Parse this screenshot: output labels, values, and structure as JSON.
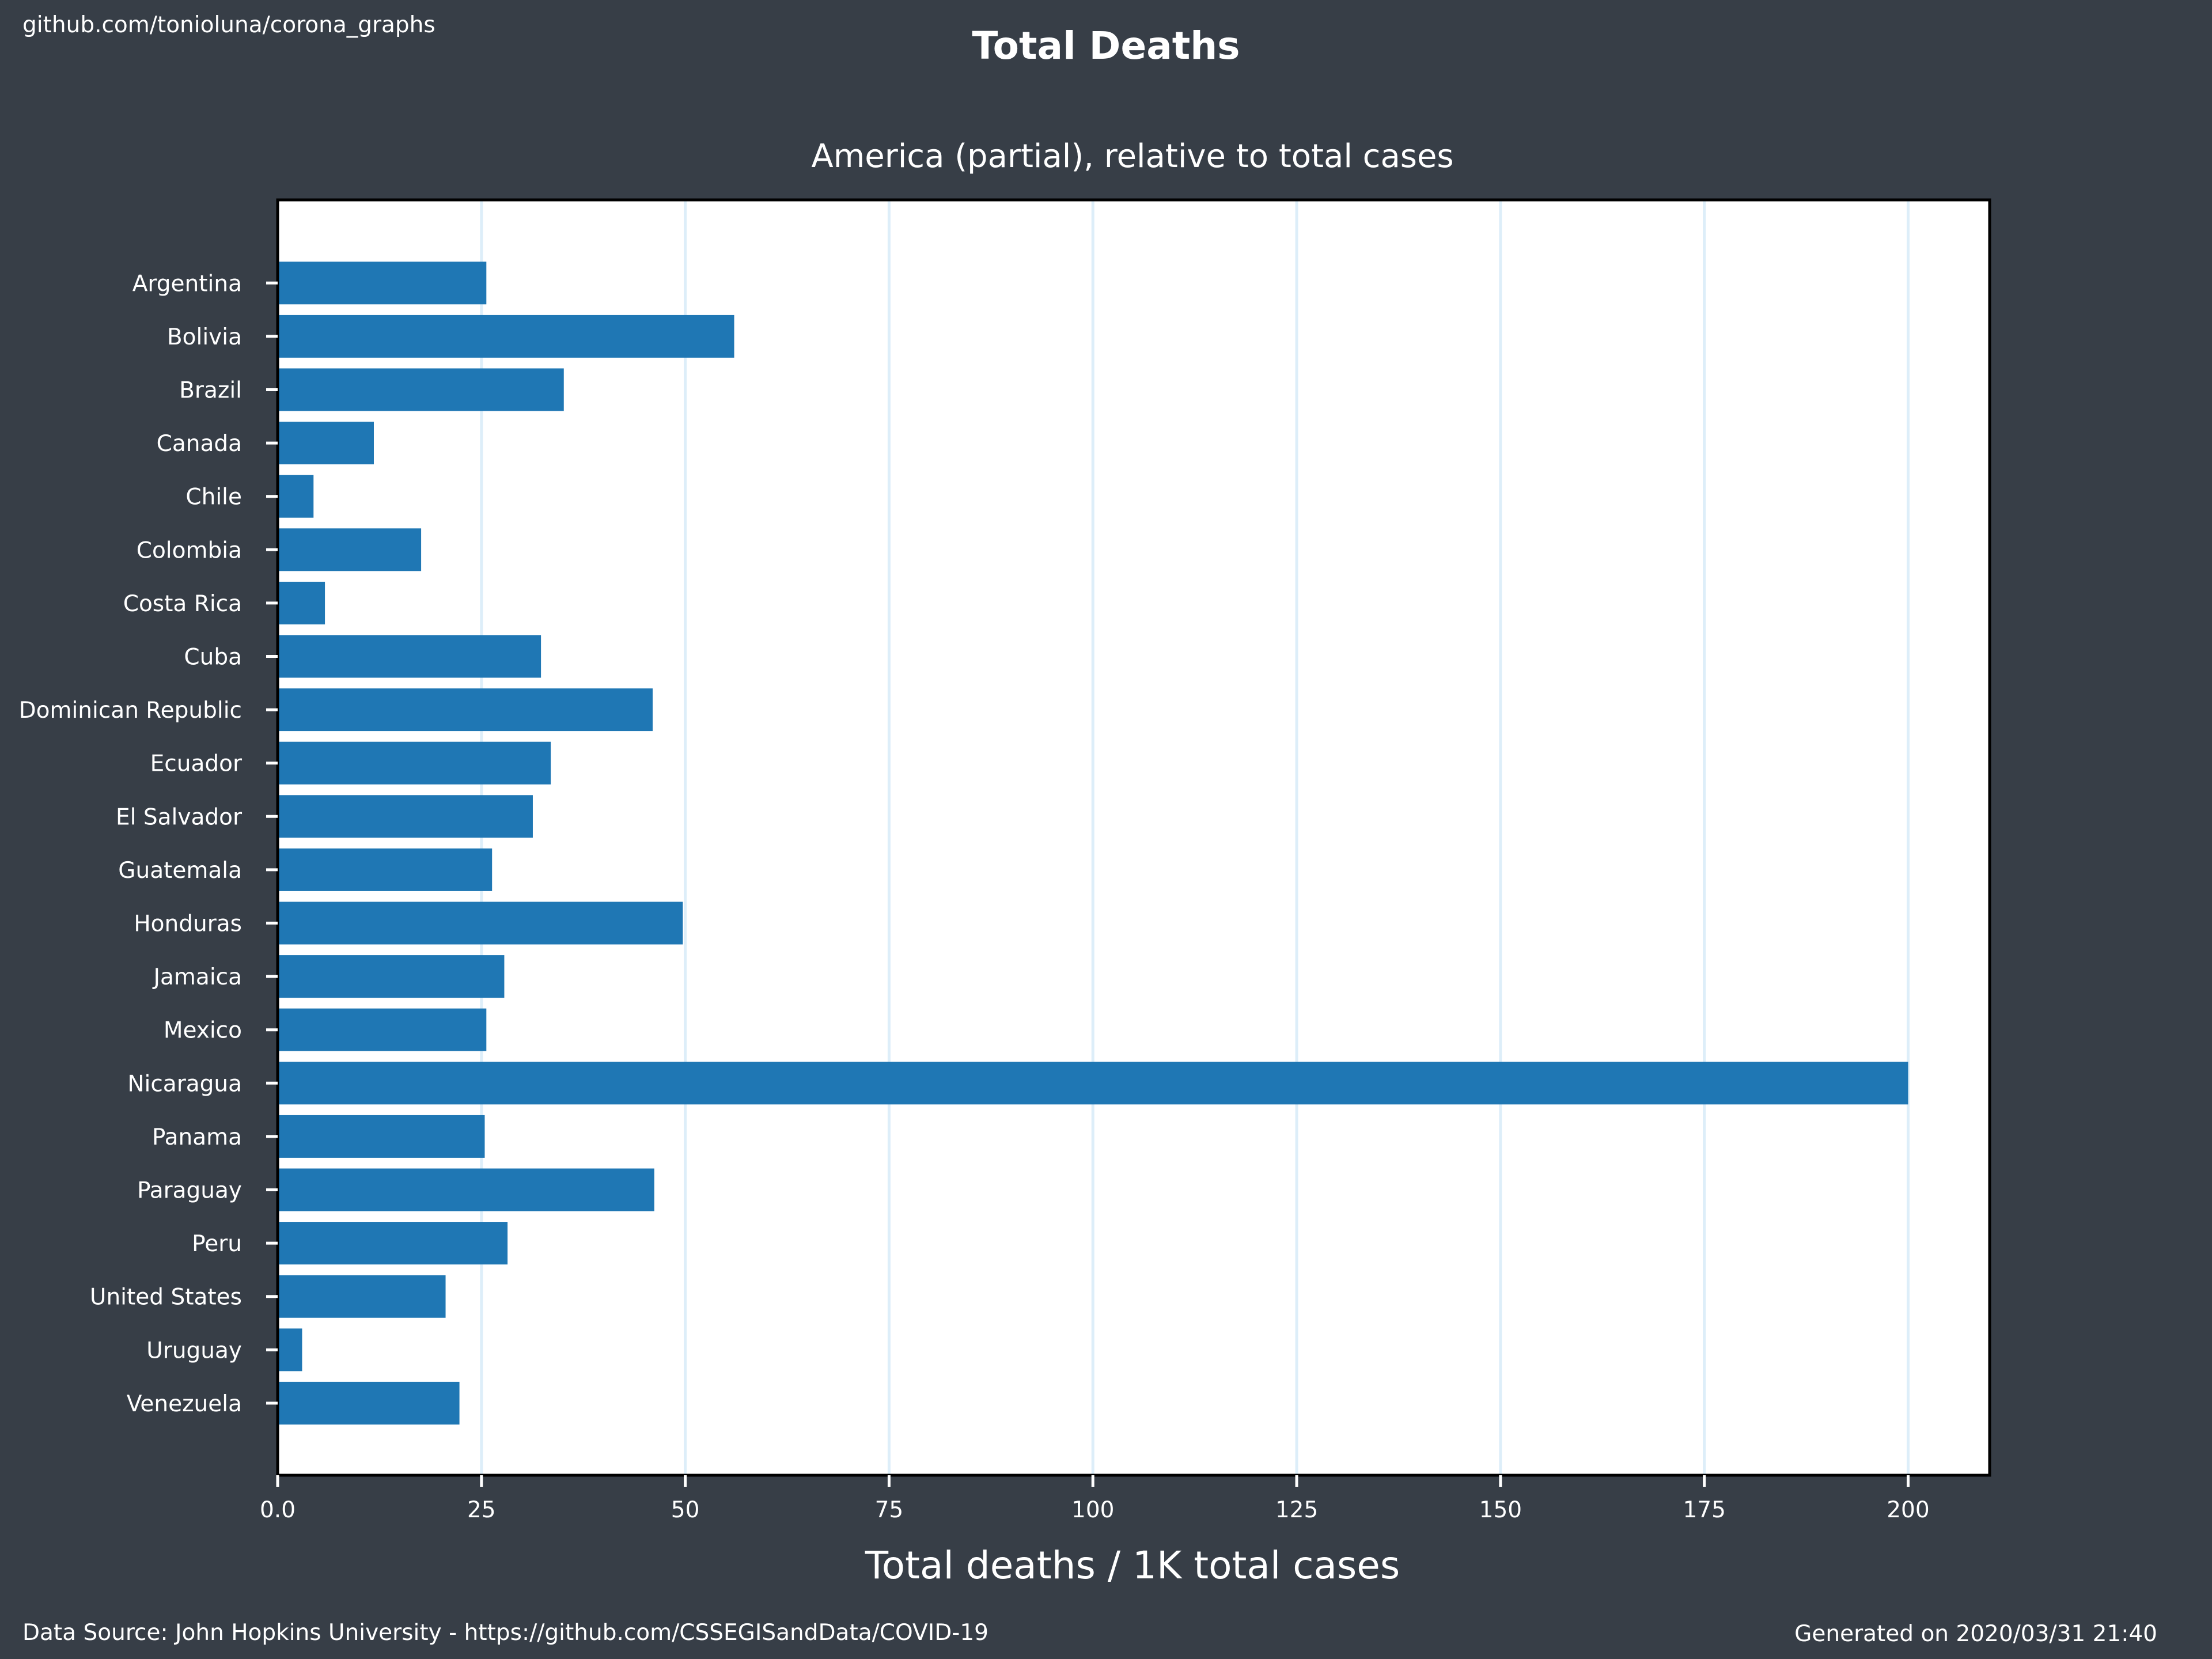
{
  "header": {
    "watermark": "github.com/tonioluna/corona_graphs"
  },
  "footer": {
    "source": "Data Source: John Hopkins University - https://github.com/CSSEGISandData/COVID-19",
    "generated": "Generated on 2020/03/31 21:40"
  },
  "chart_data": {
    "type": "bar",
    "orientation": "horizontal",
    "title": "Total Deaths",
    "subtitle": "America (partial), relative to total cases",
    "xlabel": "Total deaths / 1K total cases",
    "ylabel": "",
    "xlim": [
      0,
      210
    ],
    "xticks": [
      0,
      25,
      50,
      75,
      100,
      125,
      150,
      175,
      200
    ],
    "xtick_labels": [
      "0.0",
      "25",
      "50",
      "75",
      "100",
      "125",
      "150",
      "175",
      "200"
    ],
    "grid": "vertical",
    "legend": "none",
    "categories": [
      "Argentina",
      "Bolivia",
      "Brazil",
      "Canada",
      "Chile",
      "Colombia",
      "Costa Rica",
      "Cuba",
      "Dominican Republic",
      "Ecuador",
      "El Salvador",
      "Guatemala",
      "Honduras",
      "Jamaica",
      "Mexico",
      "Nicaragua",
      "Panama",
      "Paraguay",
      "Peru",
      "United States",
      "Uruguay",
      "Venezuela"
    ],
    "values": [
      25.6,
      56.0,
      35.1,
      11.8,
      4.4,
      17.6,
      5.8,
      32.3,
      46.0,
      33.5,
      31.3,
      26.3,
      49.7,
      27.8,
      25.6,
      200.0,
      25.4,
      46.2,
      28.2,
      20.6,
      3.0,
      22.3
    ],
    "colors": {
      "bar": "#1f77b4",
      "background": "#373e47",
      "plot_background": "#ffffff",
      "grid": "#ddeef9",
      "text": "#ffffff"
    }
  }
}
